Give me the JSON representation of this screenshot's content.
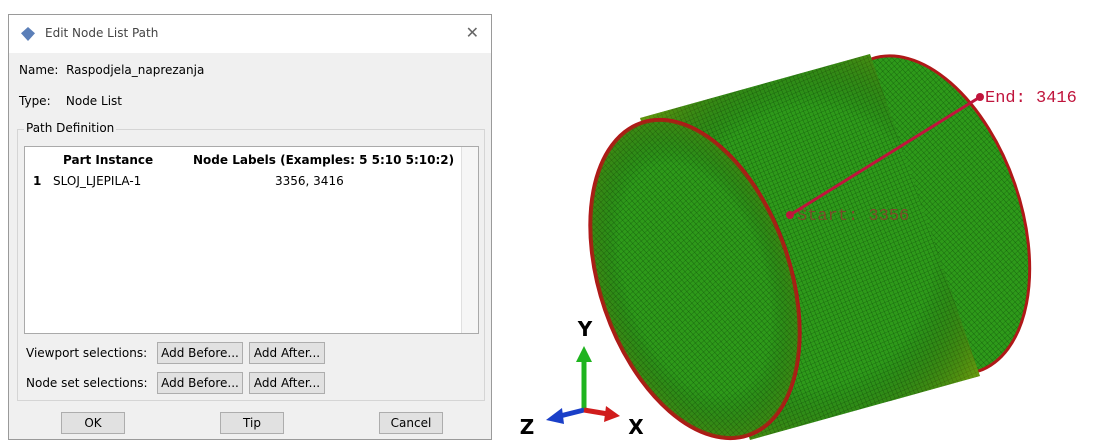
{
  "dialog": {
    "title": "Edit Node List Path",
    "name_label": "Name:",
    "name_value": "Raspodjela_naprezanja",
    "type_label": "Type:",
    "type_value": "Node List",
    "group_title": "Path Definition",
    "table": {
      "columns": [
        "Part Instance",
        "Node Labels (Examples: 5 5:10 5:10:2)"
      ],
      "rows": [
        {
          "index": "1",
          "instance": "SLOJ_LJEPILA-1",
          "labels": "3356, 3416"
        }
      ]
    },
    "viewport_label": "Viewport selections:",
    "viewport_buttons": [
      "Add Before...",
      "Add After..."
    ],
    "nodeset_label": "Node set selections:",
    "nodeset_buttons": [
      "Add Before...",
      "Add After..."
    ],
    "buttons": [
      "OK",
      "Tip",
      "Cancel"
    ]
  },
  "viewport": {
    "start_label": "Start: 3356",
    "end_label": "End: 3416",
    "axes": {
      "y": "Y",
      "z": "Z",
      "x": "X"
    }
  }
}
